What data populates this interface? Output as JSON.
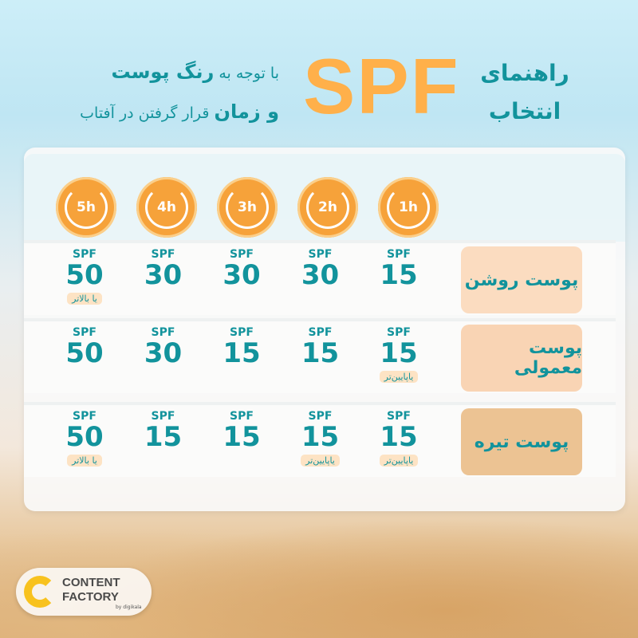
{
  "header": {
    "title_line1": "راهنمای",
    "title_line2": "انتخاب",
    "spf": "SPF",
    "subtitle_line1_pre": "با توجه به ",
    "subtitle_line1_bold": "رنگ پوست",
    "subtitle_line2_bold": "و زمان",
    "subtitle_line2_post": " قرار گرفتن در آفتاب"
  },
  "hours": [
    "1h",
    "2h",
    "3h",
    "4h",
    "5h"
  ],
  "rows": [
    {
      "label": "پوست روشن",
      "color": "#fbdcc0",
      "cells": [
        {
          "s": "SPF",
          "v": "15",
          "n": ""
        },
        {
          "s": "SPF",
          "v": "30",
          "n": ""
        },
        {
          "s": "SPF",
          "v": "30",
          "n": ""
        },
        {
          "s": "SPF",
          "v": "30",
          "n": ""
        },
        {
          "s": "SPF",
          "v": "50",
          "n": "یا بالاتر"
        }
      ]
    },
    {
      "label": "پوست معمولی",
      "color": "#f9d4b4",
      "cells": [
        {
          "s": "SPF",
          "v": "15",
          "n": "یاپایین‌تر"
        },
        {
          "s": "SPF",
          "v": "15",
          "n": ""
        },
        {
          "s": "SPF",
          "v": "15",
          "n": ""
        },
        {
          "s": "SPF",
          "v": "30",
          "n": ""
        },
        {
          "s": "SPF",
          "v": "50",
          "n": ""
        }
      ]
    },
    {
      "label": "پوست تیره",
      "color": "#ecc393",
      "cells": [
        {
          "s": "SPF",
          "v": "15",
          "n": "یاپایین‌تر"
        },
        {
          "s": "SPF",
          "v": "15",
          "n": "یاپایین‌تر"
        },
        {
          "s": "SPF",
          "v": "15",
          "n": ""
        },
        {
          "s": "SPF",
          "v": "15",
          "n": ""
        },
        {
          "s": "SPF",
          "v": "50",
          "n": "یا بالاتر"
        }
      ]
    }
  ],
  "logo": {
    "line1": "CONTENT",
    "line2": "FACTORY",
    "by": "by digikala"
  }
}
